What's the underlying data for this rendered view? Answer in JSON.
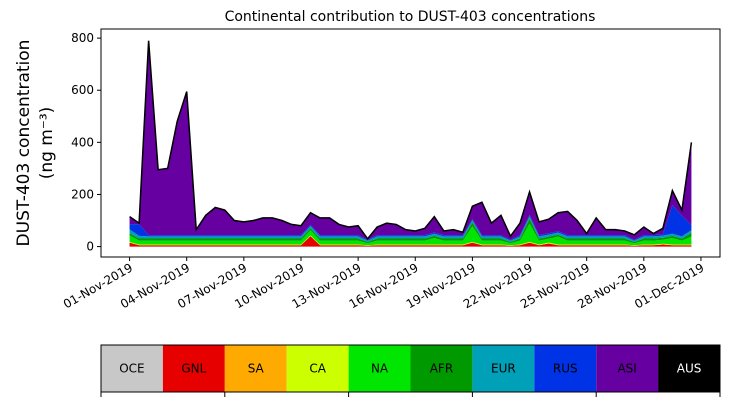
{
  "chart_data": {
    "type": "stacked_area",
    "title": "Continental contribution to DUST-403 concentrations",
    "ylabel": [
      "DUST-403 concentration",
      "(ng m⁻³)"
    ],
    "x": [
      "2019-11-01 00:00",
      "2019-11-01 12:00",
      "2019-11-02 00:00",
      "2019-11-02 12:00",
      "2019-11-03 00:00",
      "2019-11-03 12:00",
      "2019-11-04 00:00",
      "2019-11-04 12:00",
      "2019-11-05 00:00",
      "2019-11-05 12:00",
      "2019-11-06 00:00",
      "2019-11-06 12:00",
      "2019-11-07 00:00",
      "2019-11-07 12:00",
      "2019-11-08 00:00",
      "2019-11-08 12:00",
      "2019-11-09 00:00",
      "2019-11-09 12:00",
      "2019-11-10 00:00",
      "2019-11-10 12:00",
      "2019-11-11 00:00",
      "2019-11-11 12:00",
      "2019-11-12 00:00",
      "2019-11-12 12:00",
      "2019-11-13 00:00",
      "2019-11-13 12:00",
      "2019-11-14 00:00",
      "2019-11-14 12:00",
      "2019-11-15 00:00",
      "2019-11-15 12:00",
      "2019-11-16 00:00",
      "2019-11-16 12:00",
      "2019-11-17 00:00",
      "2019-11-17 12:00",
      "2019-11-18 00:00",
      "2019-11-18 12:00",
      "2019-11-19 00:00",
      "2019-11-19 12:00",
      "2019-11-20 00:00",
      "2019-11-20 12:00",
      "2019-11-21 00:00",
      "2019-11-21 12:00",
      "2019-11-22 00:00",
      "2019-11-22 12:00",
      "2019-11-23 00:00",
      "2019-11-23 12:00",
      "2019-11-24 00:00",
      "2019-11-24 12:00",
      "2019-11-25 00:00",
      "2019-11-25 12:00",
      "2019-11-26 00:00",
      "2019-11-26 12:00",
      "2019-11-27 00:00",
      "2019-11-27 12:00",
      "2019-11-28 00:00",
      "2019-11-28 12:00",
      "2019-11-29 00:00",
      "2019-11-29 12:00",
      "2019-11-30 00:00",
      "2019-11-30 12:00"
    ],
    "xlim": [
      "2019-10-30 12:00",
      "2019-12-02 00:00"
    ],
    "xticks": [
      {
        "value": "2019-11-01 00:00",
        "label": "01-Nov-2019"
      },
      {
        "value": "2019-11-04 00:00",
        "label": "04-Nov-2019"
      },
      {
        "value": "2019-11-07 00:00",
        "label": "07-Nov-2019"
      },
      {
        "value": "2019-11-10 00:00",
        "label": "10-Nov-2019"
      },
      {
        "value": "2019-11-13 00:00",
        "label": "13-Nov-2019"
      },
      {
        "value": "2019-11-16 00:00",
        "label": "16-Nov-2019"
      },
      {
        "value": "2019-11-19 00:00",
        "label": "19-Nov-2019"
      },
      {
        "value": "2019-11-22 00:00",
        "label": "22-Nov-2019"
      },
      {
        "value": "2019-11-25 00:00",
        "label": "25-Nov-2019"
      },
      {
        "value": "2019-11-28 00:00",
        "label": "28-Nov-2019"
      },
      {
        "value": "2019-12-01 00:00",
        "label": "01-Dec-2019"
      }
    ],
    "ylim": [
      -40,
      835
    ],
    "yticks": [
      0,
      200,
      400,
      600,
      800
    ],
    "outline_color": "#000000",
    "series": [
      {
        "name": "OCE",
        "color": "#c8c8c8",
        "values": [
          0,
          0,
          0,
          0,
          0,
          0,
          0,
          0,
          0,
          0,
          0,
          0,
          0,
          0,
          0,
          0,
          0,
          0,
          0,
          0,
          0,
          0,
          0,
          0,
          0,
          0,
          0,
          0,
          0,
          0,
          0,
          0,
          0,
          0,
          0,
          0,
          0,
          0,
          0,
          0,
          0,
          0,
          0,
          0,
          0,
          0,
          0,
          0,
          0,
          0,
          0,
          0,
          0,
          0,
          0,
          0,
          0,
          0,
          0,
          0
        ]
      },
      {
        "name": "GNL",
        "color": "#e60000",
        "values": [
          15,
          5,
          5,
          5,
          5,
          5,
          5,
          5,
          5,
          5,
          5,
          5,
          5,
          5,
          5,
          5,
          5,
          5,
          5,
          40,
          5,
          5,
          5,
          5,
          5,
          3,
          5,
          5,
          5,
          5,
          5,
          5,
          5,
          5,
          5,
          5,
          15,
          5,
          5,
          5,
          3,
          5,
          15,
          5,
          12,
          5,
          5,
          5,
          5,
          5,
          5,
          5,
          5,
          3,
          5,
          5,
          8,
          5,
          5,
          5
        ]
      },
      {
        "name": "SA",
        "color": "#ffaa00",
        "values": [
          0,
          0,
          0,
          0,
          0,
          0,
          0,
          0,
          0,
          0,
          0,
          0,
          0,
          0,
          0,
          0,
          0,
          0,
          0,
          0,
          0,
          0,
          0,
          0,
          0,
          0,
          0,
          0,
          0,
          0,
          0,
          0,
          0,
          0,
          0,
          0,
          0,
          0,
          0,
          0,
          0,
          0,
          0,
          0,
          0,
          0,
          0,
          0,
          0,
          0,
          0,
          0,
          0,
          0,
          0,
          0,
          0,
          0,
          0,
          0
        ]
      },
      {
        "name": "CA",
        "color": "#ccff00",
        "values": [
          3,
          3,
          3,
          3,
          3,
          3,
          3,
          3,
          3,
          3,
          3,
          3,
          3,
          3,
          3,
          3,
          3,
          3,
          3,
          3,
          3,
          3,
          3,
          3,
          3,
          2,
          3,
          3,
          3,
          3,
          3,
          3,
          3,
          3,
          3,
          3,
          3,
          3,
          3,
          3,
          2,
          3,
          3,
          3,
          3,
          3,
          3,
          3,
          3,
          3,
          3,
          3,
          3,
          2,
          3,
          3,
          3,
          3,
          3,
          3
        ]
      },
      {
        "name": "NA",
        "color": "#00e600",
        "values": [
          25,
          15,
          15,
          15,
          15,
          15,
          15,
          15,
          15,
          15,
          15,
          15,
          15,
          15,
          15,
          15,
          15,
          15,
          15,
          20,
          15,
          15,
          15,
          15,
          15,
          8,
          15,
          15,
          15,
          15,
          15,
          15,
          25,
          15,
          15,
          15,
          60,
          15,
          15,
          15,
          8,
          15,
          70,
          15,
          15,
          30,
          15,
          15,
          15,
          15,
          15,
          15,
          15,
          8,
          15,
          15,
          15,
          25,
          15,
          30
        ]
      },
      {
        "name": "AFR",
        "color": "#009900",
        "values": [
          8,
          8,
          8,
          8,
          8,
          8,
          8,
          8,
          8,
          8,
          8,
          8,
          8,
          8,
          8,
          8,
          8,
          8,
          8,
          8,
          8,
          8,
          8,
          8,
          8,
          5,
          8,
          8,
          8,
          8,
          8,
          8,
          8,
          8,
          8,
          8,
          15,
          8,
          8,
          8,
          5,
          8,
          20,
          8,
          8,
          8,
          8,
          8,
          8,
          8,
          8,
          8,
          8,
          5,
          8,
          8,
          8,
          8,
          8,
          15
        ]
      },
      {
        "name": "EUR",
        "color": "#00a0b8",
        "values": [
          15,
          10,
          8,
          8,
          8,
          8,
          8,
          8,
          8,
          8,
          8,
          8,
          8,
          8,
          8,
          8,
          8,
          8,
          8,
          8,
          8,
          8,
          8,
          8,
          8,
          5,
          8,
          8,
          8,
          8,
          8,
          8,
          8,
          8,
          8,
          8,
          8,
          8,
          8,
          8,
          5,
          8,
          8,
          8,
          8,
          8,
          8,
          8,
          8,
          8,
          8,
          8,
          8,
          5,
          8,
          8,
          8,
          8,
          8,
          10
        ]
      },
      {
        "name": "RUS",
        "color": "#0033e6",
        "values": [
          20,
          45,
          5,
          5,
          5,
          5,
          5,
          5,
          5,
          5,
          5,
          5,
          5,
          5,
          5,
          5,
          5,
          5,
          5,
          5,
          5,
          5,
          5,
          5,
          5,
          3,
          5,
          5,
          5,
          5,
          5,
          5,
          5,
          5,
          5,
          5,
          5,
          5,
          5,
          5,
          3,
          5,
          5,
          5,
          5,
          5,
          5,
          5,
          5,
          5,
          5,
          5,
          5,
          3,
          5,
          5,
          5,
          110,
          80,
          20
        ]
      },
      {
        "name": "ASI",
        "color": "#6600a0",
        "values": [
          29,
          4,
          746,
          251,
          256,
          436,
          551,
          21,
          76,
          106,
          96,
          56,
          51,
          56,
          66,
          66,
          56,
          41,
          36,
          46,
          66,
          66,
          41,
          31,
          36,
          4,
          31,
          46,
          41,
          21,
          16,
          26,
          61,
          16,
          21,
          11,
          49,
          126,
          46,
          76,
          14,
          46,
          89,
          51,
          54,
          71,
          91,
          56,
          6,
          66,
          21,
          21,
          16,
          19,
          31,
          6,
          23,
          56,
          21,
          317
        ]
      },
      {
        "name": "AUS",
        "color": "#000000",
        "values": [
          0,
          0,
          0,
          0,
          0,
          0,
          0,
          0,
          0,
          0,
          0,
          0,
          0,
          0,
          0,
          0,
          0,
          0,
          0,
          0,
          0,
          0,
          0,
          0,
          0,
          0,
          0,
          0,
          0,
          0,
          0,
          0,
          0,
          0,
          0,
          0,
          0,
          0,
          0,
          0,
          0,
          0,
          0,
          0,
          0,
          0,
          0,
          0,
          0,
          0,
          0,
          0,
          0,
          0,
          0,
          0,
          0,
          0,
          0,
          0
        ]
      }
    ]
  }
}
